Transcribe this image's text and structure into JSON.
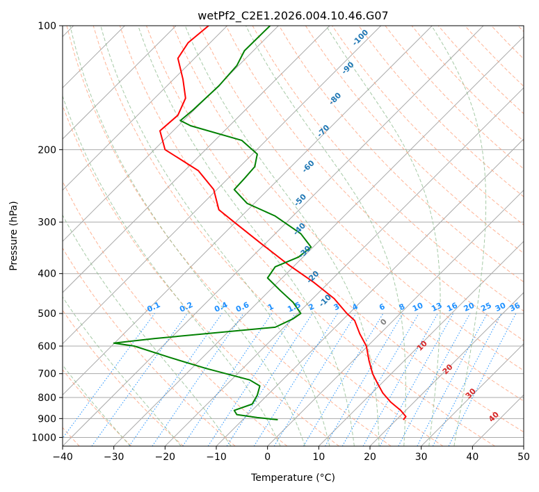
{
  "chart_data": {
    "type": "line",
    "title": "wetPf2_C2E1.2026.004.10.46.G07",
    "xlabel": "Temperature (°C)",
    "ylabel": "Pressure (hPa)",
    "xlim": [
      -40,
      50
    ],
    "ylim": [
      1050,
      100
    ],
    "y_scale": "log",
    "x_ticks": [
      -40,
      -30,
      -20,
      -10,
      0,
      10,
      20,
      30,
      40,
      50
    ],
    "x_tick_labels": [
      "−40",
      "−30",
      "−20",
      "−10",
      "0",
      "10",
      "20",
      "30",
      "40",
      "50"
    ],
    "y_ticks": [
      100,
      200,
      300,
      400,
      500,
      600,
      700,
      800,
      900,
      1000
    ],
    "y_tick_labels": [
      "100",
      "200",
      "300",
      "400",
      "500",
      "600",
      "700",
      "800",
      "900",
      "1000"
    ],
    "grid": true,
    "series": [
      {
        "id": "temperature",
        "color": "#ff0000",
        "points": [
          [
            906,
            26.5
          ],
          [
            890,
            27.0
          ],
          [
            860,
            26.0
          ],
          [
            820,
            24.0
          ],
          [
            780,
            22.5
          ],
          [
            740,
            21.5
          ],
          [
            700,
            20.5
          ],
          [
            650,
            19.8
          ],
          [
            600,
            19.3
          ],
          [
            560,
            18.0
          ],
          [
            520,
            17.0
          ],
          [
            500,
            15.5
          ],
          [
            460,
            13.0
          ],
          [
            420,
            9.0
          ],
          [
            380,
            4.0
          ],
          [
            340,
            -1.0
          ],
          [
            300,
            -6.5
          ],
          [
            280,
            -9.5
          ],
          [
            250,
            -10.5
          ],
          [
            225,
            -13.5
          ],
          [
            200,
            -20.0
          ],
          [
            180,
            -21.0
          ],
          [
            165,
            -17.5
          ],
          [
            150,
            -16.0
          ],
          [
            135,
            -16.5
          ],
          [
            120,
            -17.5
          ],
          [
            110,
            -15.5
          ],
          [
            100,
            -11.5
          ]
        ]
      },
      {
        "id": "dewpoint",
        "color": "#008000",
        "points": [
          [
            906,
            2.0
          ],
          [
            895,
            -2.0
          ],
          [
            880,
            -6.0
          ],
          [
            860,
            -6.5
          ],
          [
            830,
            -3.0
          ],
          [
            790,
            -2.0
          ],
          [
            750,
            -1.5
          ],
          [
            725,
            -3.5
          ],
          [
            680,
            -12.0
          ],
          [
            640,
            -19.0
          ],
          [
            600,
            -26.0
          ],
          [
            590,
            -30.0
          ],
          [
            575,
            -22.0
          ],
          [
            540,
            1.5
          ],
          [
            515,
            5.0
          ],
          [
            500,
            6.5
          ],
          [
            470,
            5.0
          ],
          [
            440,
            2.5
          ],
          [
            410,
            0.0
          ],
          [
            385,
            1.5
          ],
          [
            365,
            6.0
          ],
          [
            345,
            8.5
          ],
          [
            320,
            6.5
          ],
          [
            290,
            1.5
          ],
          [
            270,
            -4.0
          ],
          [
            250,
            -6.5
          ],
          [
            235,
            -4.5
          ],
          [
            220,
            -2.5
          ],
          [
            205,
            -2.0
          ],
          [
            190,
            -5.0
          ],
          [
            175,
            -15.0
          ],
          [
            170,
            -17.0
          ],
          [
            160,
            -14.5
          ],
          [
            140,
            -9.5
          ],
          [
            125,
            -6.0
          ],
          [
            115,
            -4.5
          ],
          [
            100,
            0.5
          ]
        ]
      }
    ],
    "dry_adiabats": [
      -100,
      -90,
      -80,
      -70,
      -60,
      -50,
      -40,
      -30,
      -20,
      -10,
      0,
      10,
      20,
      30,
      40,
      50,
      60,
      70,
      80,
      90,
      100,
      110,
      120,
      130,
      140,
      150,
      160,
      170,
      180,
      190,
      200
    ],
    "moist_adiabats": [
      -30,
      -20,
      -10,
      0,
      5,
      10,
      15,
      20,
      25,
      30,
      35
    ],
    "mixing_ratios": [
      0.1,
      0.2,
      0.4,
      0.6,
      1,
      1.5,
      2,
      3,
      4,
      6,
      8,
      10,
      13,
      16,
      20,
      25,
      30,
      36
    ],
    "mixing_ratio_labels": [
      {
        "text": "0.1",
        "value": 0.1
      },
      {
        "text": "0.2",
        "value": 0.2
      },
      {
        "text": "0.4",
        "value": 0.4
      },
      {
        "text": "0.6",
        "value": 0.6
      },
      {
        "text": "1",
        "value": 1
      },
      {
        "text": "1.5",
        "value": 1.5
      },
      {
        "text": "2",
        "value": 2
      },
      {
        "text": "3",
        "value": 3
      },
      {
        "text": "4",
        "value": 4
      },
      {
        "text": "6",
        "value": 6
      },
      {
        "text": "8",
        "value": 8
      },
      {
        "text": "10",
        "value": 10
      },
      {
        "text": "13",
        "value": 13
      },
      {
        "text": "16",
        "value": 16
      },
      {
        "text": "20",
        "value": 20
      },
      {
        "text": "25",
        "value": 25
      },
      {
        "text": "30",
        "value": 30
      },
      {
        "text": "36",
        "value": 36
      }
    ],
    "isotherm_labels": [
      {
        "text": "-100",
        "value": -100
      },
      {
        "text": "-90",
        "value": -90
      },
      {
        "text": "-80",
        "value": -80
      },
      {
        "text": "-70",
        "value": -70
      },
      {
        "text": "-60",
        "value": -60
      },
      {
        "text": "-50",
        "value": -50
      },
      {
        "text": "-40",
        "value": -40
      },
      {
        "text": "-30",
        "value": -30
      },
      {
        "text": "-20",
        "value": -20
      },
      {
        "text": "-10",
        "value": -10
      }
    ],
    "warm_isotherm_labels": [
      {
        "text": "0",
        "value": 0
      },
      {
        "text": "10",
        "value": 10
      },
      {
        "text": "20",
        "value": 20
      },
      {
        "text": "30",
        "value": 30
      },
      {
        "text": "40",
        "value": 40
      }
    ],
    "colors": {
      "isotherm": "#a9a9a9",
      "dry_adiabat": "#ffa07a",
      "moist_adiabat": "#8fbc8f",
      "mixing_ratio": "#1e90ff",
      "cold_label": "#1f77b4",
      "warm_label": "#d62728",
      "zero_label": "#808080",
      "mix_label": "#1e90ff"
    }
  }
}
